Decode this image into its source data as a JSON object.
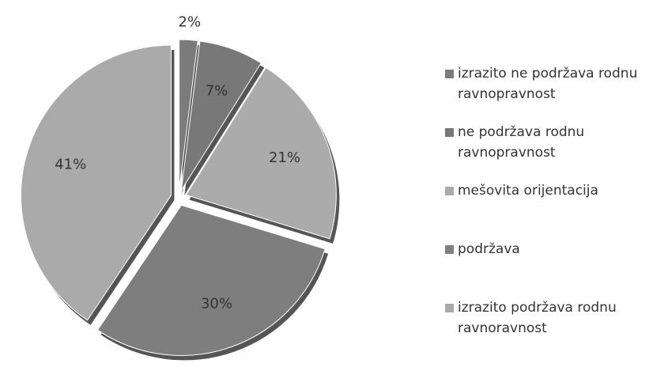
{
  "chart_data": {
    "type": "pie",
    "categories": [
      "izrazito ne podržava rodnu ravnopravnost",
      "ne podržava rodnu ravnopravnost",
      "mešovita orijentacija",
      "podržava",
      "izrazito podržava rodnu ravnoravnost"
    ],
    "values": [
      2,
      7,
      21,
      30,
      41
    ],
    "value_labels": [
      "2%",
      "7%",
      "21%",
      "30%",
      "41%"
    ],
    "colors": [
      "#7b7b7b",
      "#787878",
      "#ababab",
      "#7e7e7e",
      "#aaaaaa"
    ]
  }
}
